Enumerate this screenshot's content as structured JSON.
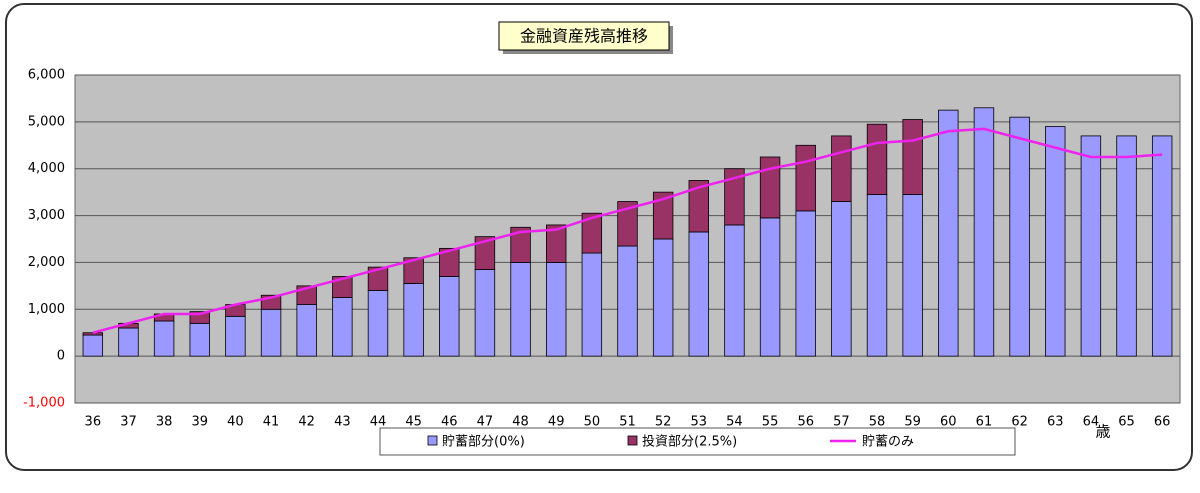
{
  "chart_data": {
    "type": "bar",
    "title": "金融資産残高推移",
    "x_label": "歳",
    "categories": [
      "36",
      "37",
      "38",
      "39",
      "40",
      "41",
      "42",
      "43",
      "44",
      "45",
      "46",
      "47",
      "48",
      "49",
      "50",
      "51",
      "52",
      "53",
      "54",
      "55",
      "56",
      "57",
      "58",
      "59",
      "60",
      "61",
      "62",
      "63",
      "64",
      "65",
      "66"
    ],
    "series": [
      {
        "name": "貯蓄部分(0%)",
        "type": "bar",
        "color": "#9999ff",
        "values": [
          450,
          600,
          750,
          700,
          850,
          1000,
          1100,
          1250,
          1400,
          1550,
          1700,
          1850,
          2000,
          2000,
          2200,
          2350,
          2500,
          2650,
          2800,
          2950,
          3100,
          3300,
          3450,
          3450,
          5250,
          5300,
          5100,
          4900,
          4700,
          4700,
          4700
        ]
      },
      {
        "name": "投資部分(2.5%)",
        "type": "bar",
        "color": "#993366",
        "values": [
          50,
          100,
          150,
          250,
          250,
          300,
          400,
          450,
          500,
          550,
          600,
          700,
          750,
          800,
          850,
          950,
          1000,
          1100,
          1200,
          1300,
          1400,
          1400,
          1500,
          1600,
          0,
          0,
          0,
          0,
          0,
          0,
          0
        ]
      },
      {
        "name": "貯蓄のみ",
        "type": "line",
        "color": "#ee22ee",
        "values": [
          500,
          700,
          900,
          900,
          1100,
          1250,
          1450,
          1650,
          1850,
          2050,
          2250,
          2450,
          2650,
          2700,
          2950,
          3150,
          3350,
          3600,
          3800,
          4000,
          4150,
          4350,
          4550,
          4600,
          4800,
          4850,
          4650,
          4450,
          4250,
          4250,
          4300
        ]
      }
    ],
    "ylim": [
      -1000,
      6000
    ],
    "yticks": [
      {
        "value": -1000,
        "label": "-1,000"
      },
      0,
      {
        "value": 1000,
        "label": "1,000"
      },
      {
        "value": 2000,
        "label": "2,000"
      },
      {
        "value": 3000,
        "label": "3,000"
      },
      {
        "value": 4000,
        "label": "4,000"
      },
      {
        "value": 5000,
        "label": "5,000"
      },
      {
        "value": 6000,
        "label": "6,000"
      }
    ],
    "grid": true,
    "legend": "bottom"
  }
}
